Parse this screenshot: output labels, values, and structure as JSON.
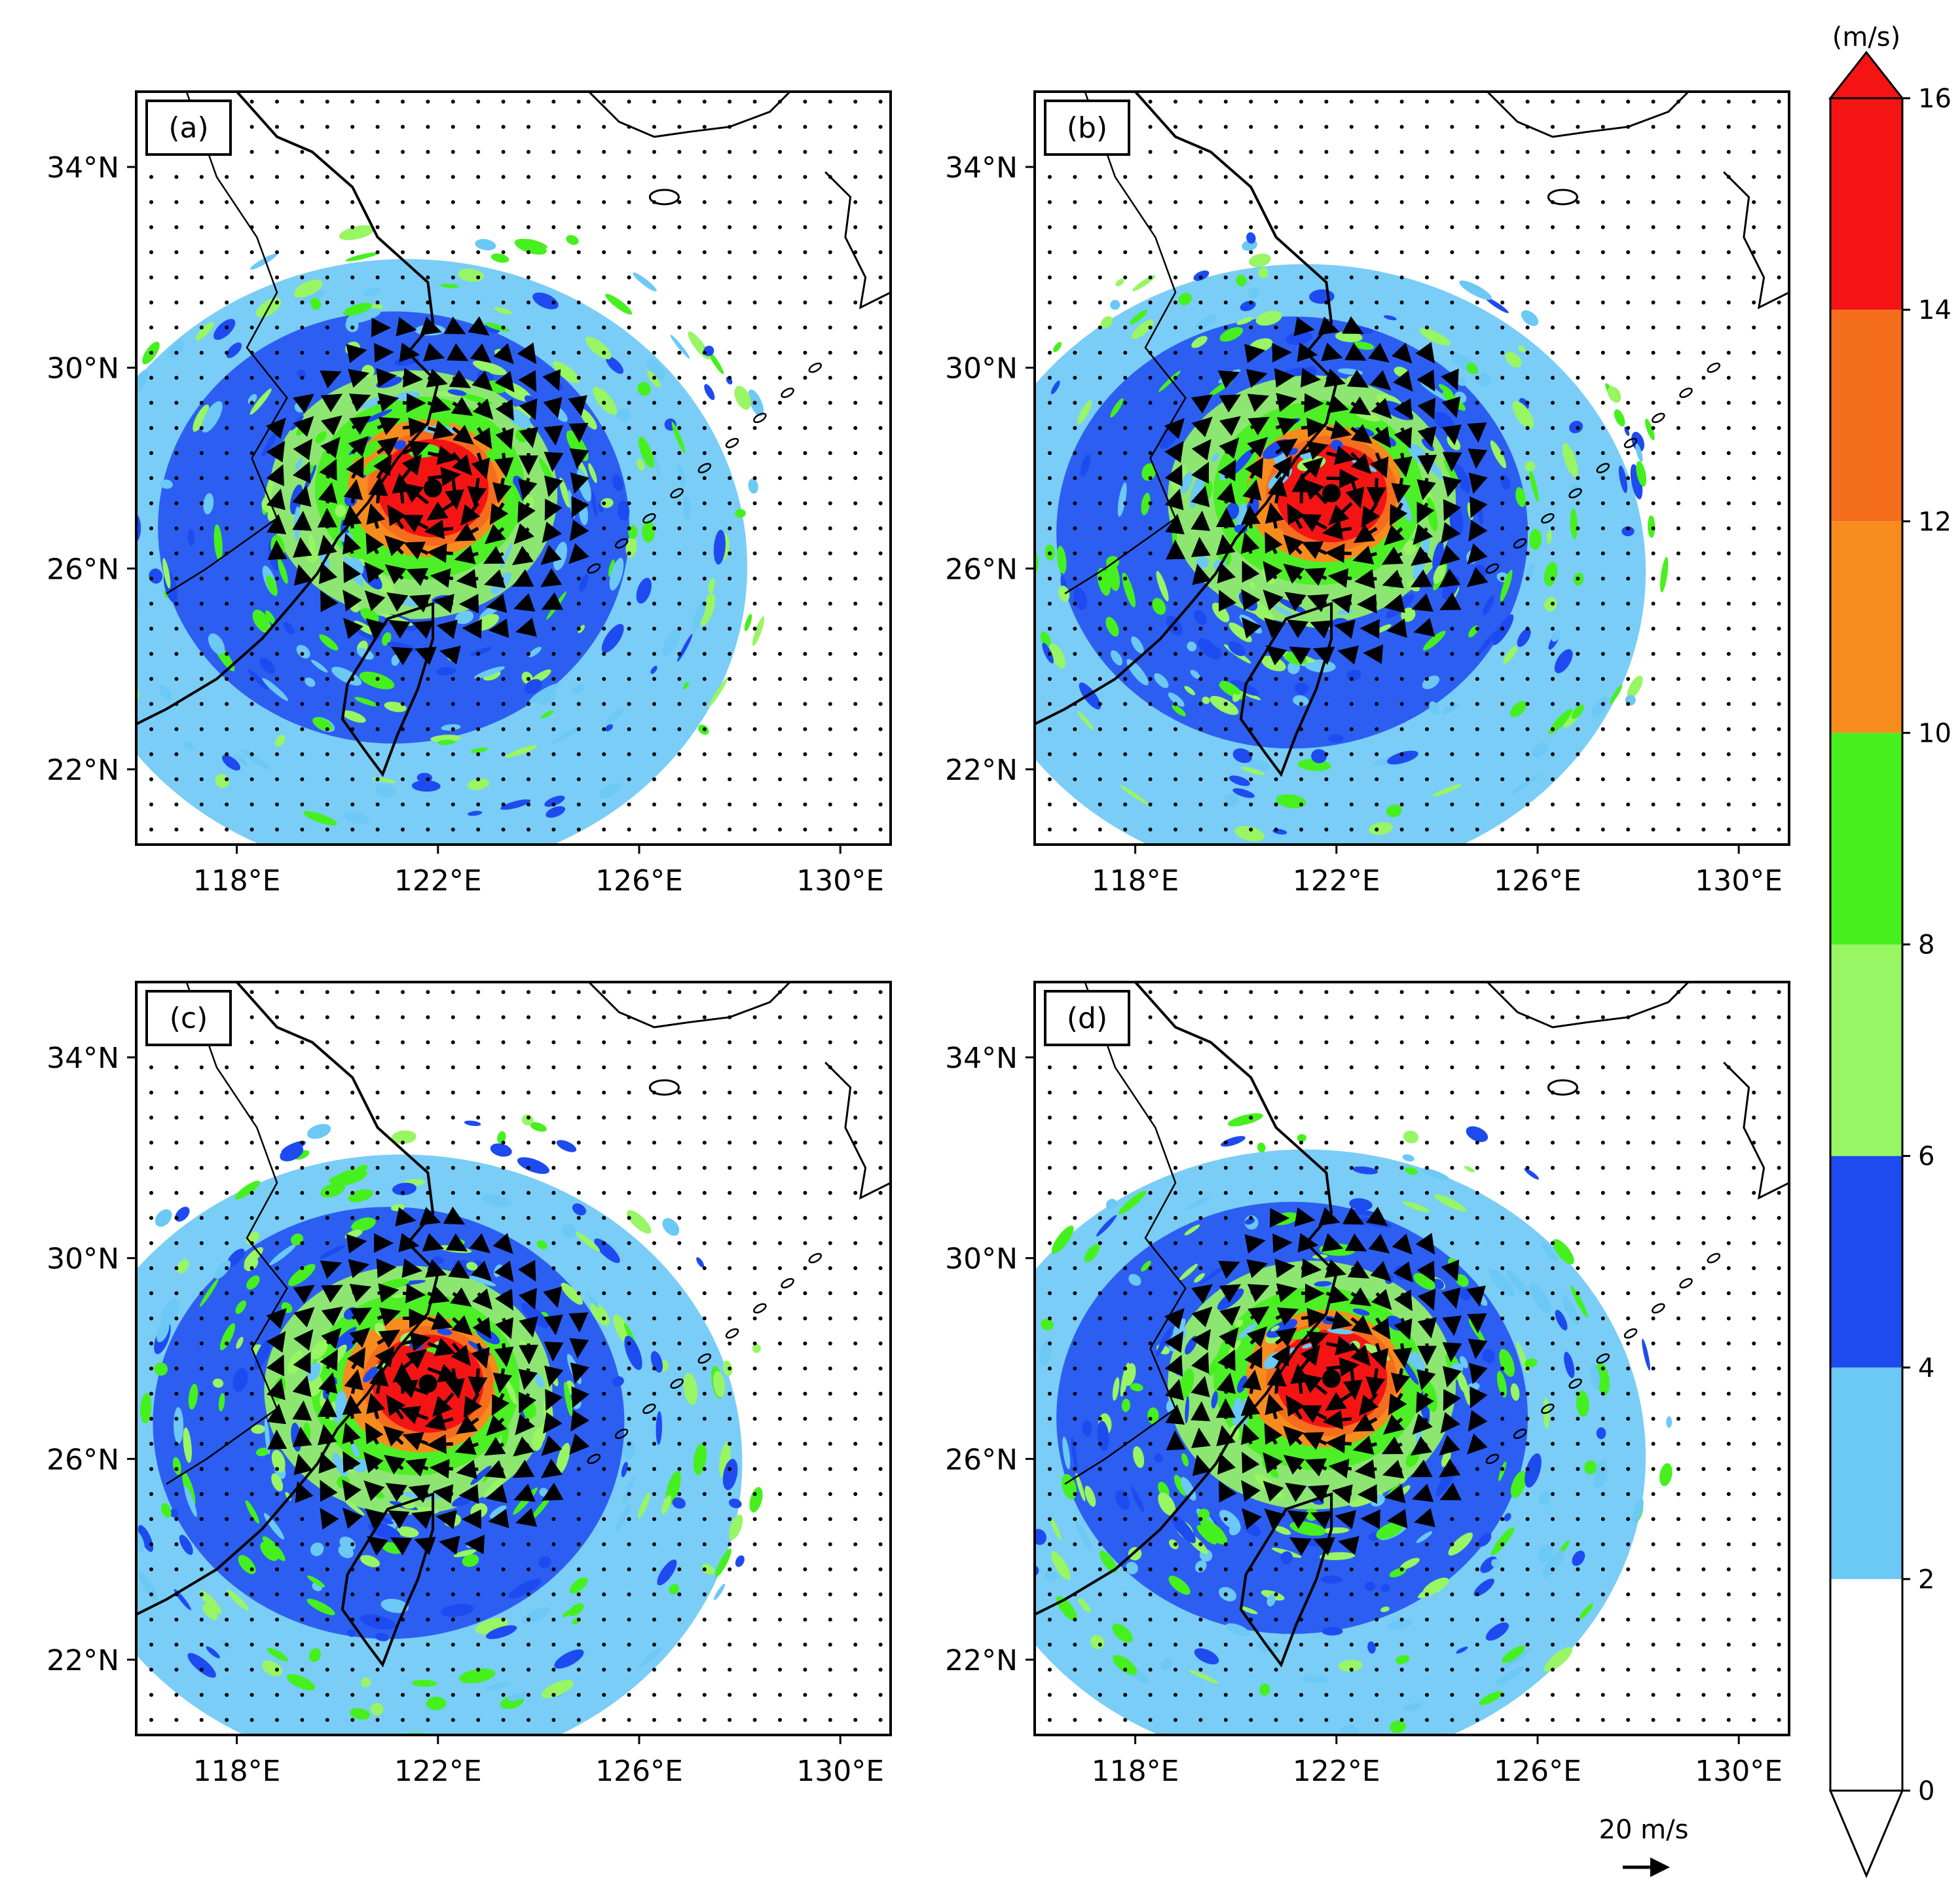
{
  "figure": {
    "colorbar": {
      "unit": "(m/s)",
      "levels": [
        0,
        2,
        4,
        6,
        8,
        10,
        12,
        14,
        16
      ],
      "colors": [
        "#ffffff",
        "#6cc8f5",
        "#1e4bf0",
        "#98f564",
        "#46f01e",
        "#f78c1e",
        "#f46e1e",
        "#f51414"
      ],
      "extend": "both"
    },
    "axes": {
      "x_ticks": [
        "118°E",
        "122°E",
        "126°E",
        "130°E"
      ],
      "y_ticks": [
        "34°N",
        "30°N",
        "26°N",
        "22°N"
      ],
      "x_tick_values": [
        118,
        122,
        126,
        130
      ],
      "y_tick_values": [
        34,
        30,
        26,
        22
      ],
      "lon_range": [
        116,
        131
      ],
      "lat_range": [
        20.5,
        35.5
      ]
    },
    "panels": [
      {
        "label": "(a)",
        "center_lon": 121.9,
        "center_lat": 27.6
      },
      {
        "label": "(b)",
        "center_lon": 121.9,
        "center_lat": 27.5
      },
      {
        "label": "(c)",
        "center_lon": 121.8,
        "center_lat": 27.5
      },
      {
        "label": "(d)",
        "center_lon": 121.9,
        "center_lat": 27.6
      }
    ],
    "reference_vector": {
      "label": "20 m/s",
      "value": 20
    }
  },
  "chart_data": {
    "type": "heatmap",
    "title": "",
    "xlabel": "",
    "ylabel": "",
    "variable": "wind speed with wind vectors",
    "unit": "m/s",
    "x_ticks": [
      "118°E",
      "122°E",
      "126°E",
      "130°E"
    ],
    "y_ticks": [
      "34°N",
      "30°N",
      "26°N",
      "22°N"
    ],
    "panels": [
      "(a)",
      "(b)",
      "(c)",
      "(d)"
    ],
    "colorbar_levels": [
      0,
      2,
      4,
      6,
      8,
      10,
      12,
      14,
      16
    ],
    "max_speed_region": ">16 m/s near typhoon center around 122°E, 27.5°N"
  }
}
